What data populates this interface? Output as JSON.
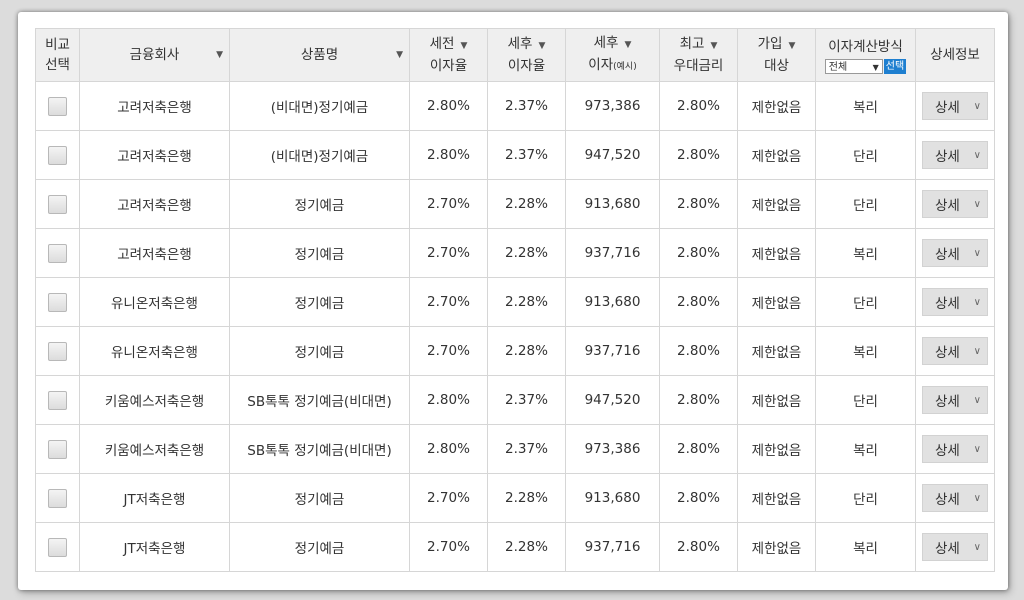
{
  "header": {
    "compare": [
      "비교",
      "선택"
    ],
    "company": "금융회사",
    "product": "상품명",
    "pretax_rate": [
      "세전",
      "이자율"
    ],
    "posttax_rate": [
      "세후",
      "이자율"
    ],
    "posttax_interest": [
      "세후",
      "이자",
      "(예시)"
    ],
    "max_rate": [
      "최고",
      "우대금리"
    ],
    "target": [
      "가입",
      "대상"
    ],
    "method": "이자계산방식",
    "method_select_value": "전체",
    "method_select_button": "선택",
    "detail": "상세정보",
    "sort_icon": "triangle-down-icon"
  },
  "rows": [
    {
      "company": "고려저축은행",
      "product": "(비대면)정기예금",
      "pretax": "2.80%",
      "posttax": "2.37%",
      "interest": "973,386",
      "max": "2.80%",
      "target": "제한없음",
      "method": "복리",
      "detail": "상세"
    },
    {
      "company": "고려저축은행",
      "product": "(비대면)정기예금",
      "pretax": "2.80%",
      "posttax": "2.37%",
      "interest": "947,520",
      "max": "2.80%",
      "target": "제한없음",
      "method": "단리",
      "detail": "상세"
    },
    {
      "company": "고려저축은행",
      "product": "정기예금",
      "pretax": "2.70%",
      "posttax": "2.28%",
      "interest": "913,680",
      "max": "2.80%",
      "target": "제한없음",
      "method": "단리",
      "detail": "상세"
    },
    {
      "company": "고려저축은행",
      "product": "정기예금",
      "pretax": "2.70%",
      "posttax": "2.28%",
      "interest": "937,716",
      "max": "2.80%",
      "target": "제한없음",
      "method": "복리",
      "detail": "상세"
    },
    {
      "company": "유니온저축은행",
      "product": "정기예금",
      "pretax": "2.70%",
      "posttax": "2.28%",
      "interest": "913,680",
      "max": "2.80%",
      "target": "제한없음",
      "method": "단리",
      "detail": "상세"
    },
    {
      "company": "유니온저축은행",
      "product": "정기예금",
      "pretax": "2.70%",
      "posttax": "2.28%",
      "interest": "937,716",
      "max": "2.80%",
      "target": "제한없음",
      "method": "복리",
      "detail": "상세"
    },
    {
      "company": "키움예스저축은행",
      "product": "SB톡톡 정기예금(비대면)",
      "pretax": "2.80%",
      "posttax": "2.37%",
      "interest": "947,520",
      "max": "2.80%",
      "target": "제한없음",
      "method": "단리",
      "detail": "상세"
    },
    {
      "company": "키움예스저축은행",
      "product": "SB톡톡 정기예금(비대면)",
      "pretax": "2.80%",
      "posttax": "2.37%",
      "interest": "973,386",
      "max": "2.80%",
      "target": "제한없음",
      "method": "복리",
      "detail": "상세"
    },
    {
      "company": "JT저축은행",
      "product": "정기예금",
      "pretax": "2.70%",
      "posttax": "2.28%",
      "interest": "913,680",
      "max": "2.80%",
      "target": "제한없음",
      "method": "단리",
      "detail": "상세"
    },
    {
      "company": "JT저축은행",
      "product": "정기예금",
      "pretax": "2.70%",
      "posttax": "2.28%",
      "interest": "937,716",
      "max": "2.80%",
      "target": "제한없음",
      "method": "복리",
      "detail": "상세"
    }
  ]
}
